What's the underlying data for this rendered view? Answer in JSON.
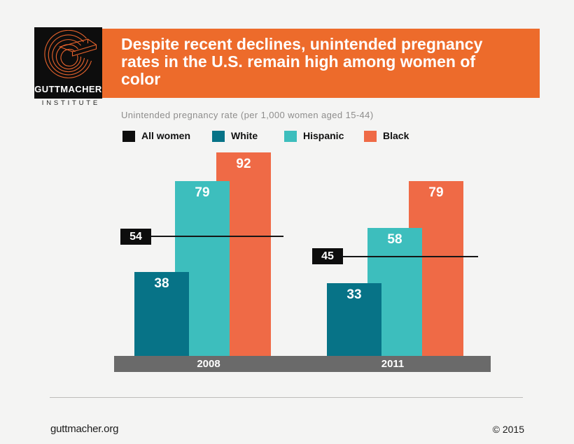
{
  "logo": {
    "name": "GUTTMACHER",
    "subname": "INSTITUTE",
    "mark_color": "#e8632c"
  },
  "header": {
    "title": "Despite recent declines, unintended pregnancy rates in the U.S. remain high among women of color",
    "accent_color": "#ed6b2b"
  },
  "subtitle": "Unintended pregnancy rate (per 1,000 women aged 15-44)",
  "chart_data": {
    "type": "bar",
    "title": "Despite recent declines, unintended pregnancy rates in the U.S. remain high among women of color",
    "ylabel": "Unintended pregnancy rate (per 1,000 women aged 15-44)",
    "categories": [
      "2008",
      "2011"
    ],
    "series": [
      {
        "name": "All women",
        "values": [
          54,
          45
        ],
        "color": "#0d0d0d",
        "render": "reference-line"
      },
      {
        "name": "White",
        "values": [
          38,
          33
        ],
        "color": "#077387",
        "render": "bar"
      },
      {
        "name": "Hispanic",
        "values": [
          79,
          58
        ],
        "color": "#3dbebd",
        "render": "bar"
      },
      {
        "name": "Black",
        "values": [
          92,
          79
        ],
        "color": "#ef6a46",
        "render": "bar"
      }
    ],
    "ylim": [
      0,
      100
    ],
    "grid": false,
    "legend_position": "top",
    "bar_value_labels": true
  },
  "footer": {
    "site": "guttmacher.org",
    "copyright": "© 2015"
  }
}
